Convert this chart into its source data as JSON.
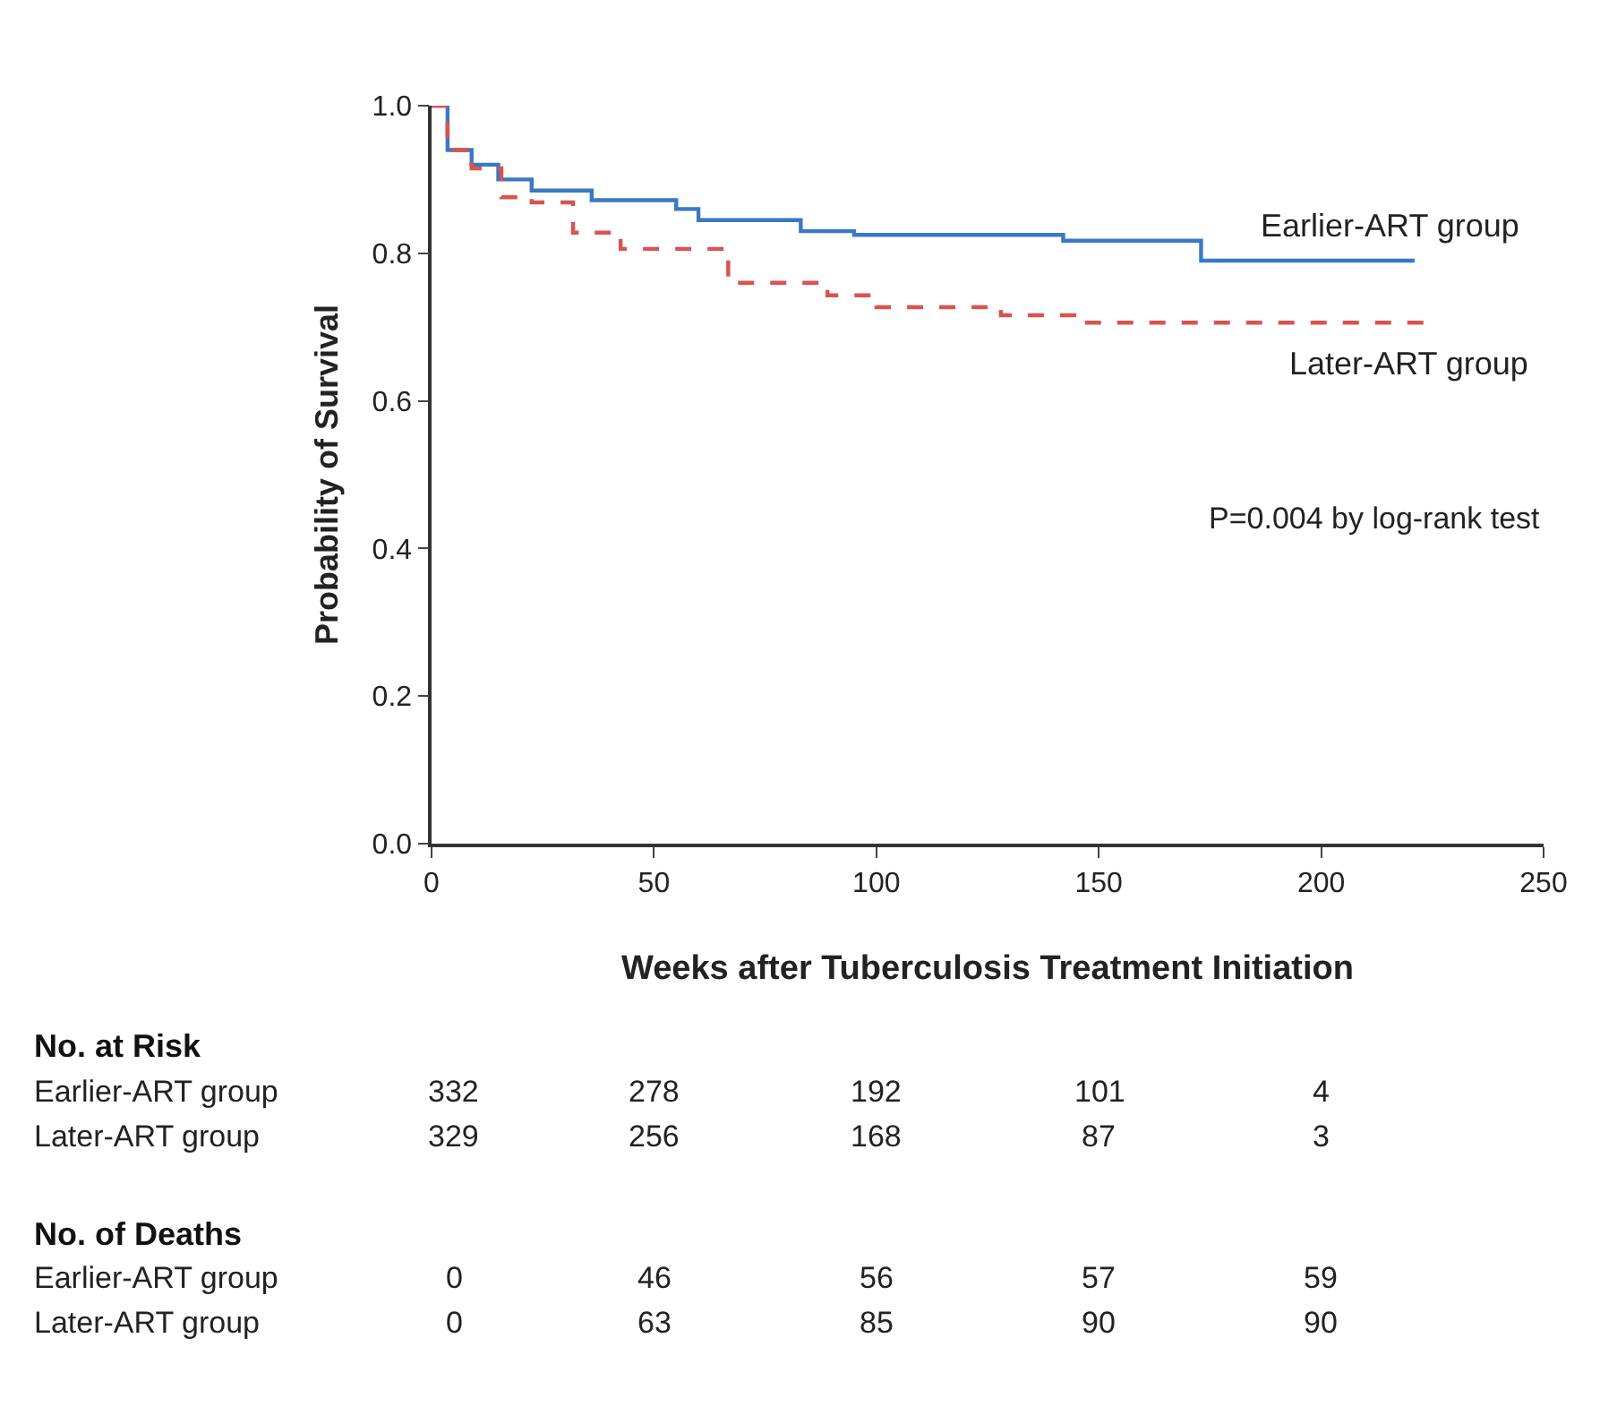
{
  "chart_data": {
    "type": "step",
    "xlabel": "Weeks after Tuberculosis Treatment Initiation",
    "ylabel": "Probability of Survival",
    "xlim": [
      0,
      250
    ],
    "xticks": [
      0,
      50,
      100,
      150,
      200,
      250
    ],
    "ylim": [
      0,
      1
    ],
    "yticks": [
      {
        "value": 0,
        "label": "0.0"
      },
      {
        "value": 0.2,
        "label": "0.2"
      },
      {
        "value": 0.4,
        "label": "0.4"
      },
      {
        "value": 0.6,
        "label": "0.6"
      },
      {
        "value": 0.8,
        "label": "0.8"
      },
      {
        "value": 1,
        "label": "1.0"
      }
    ],
    "grid": false,
    "legend": false,
    "marker": "none",
    "series": [
      {
        "name": "Earlier-ART group",
        "color": "#3a78c4",
        "line_style": "solid",
        "x": [
          0,
          3.6,
          9,
          15,
          22.5,
          36,
          55,
          60,
          83,
          95,
          142,
          173,
          221
        ],
        "values": [
          1,
          0.94,
          0.92,
          0.9,
          0.885,
          0.872,
          0.86,
          0.845,
          0.83,
          0.825,
          0.817,
          0.79,
          0.79
        ]
      },
      {
        "name": "Later-ART group",
        "color": "#d9534f",
        "line_style": "dashed",
        "x": [
          0,
          3.6,
          9,
          15.7,
          22.5,
          31.8,
          42.5,
          50.5,
          66.7,
          89,
          100,
          128,
          144.5,
          223
        ],
        "values": [
          1,
          0.94,
          0.915,
          0.876,
          0.869,
          0.828,
          0.806,
          0.806,
          0.76,
          0.743,
          0.727,
          0.716,
          0.706,
          0.7
        ]
      }
    ],
    "annotations": [
      "P=0.004 by log-rank test",
      "No. at Risk",
      "Earlier-ART group",
      "332",
      "278",
      "192",
      "101",
      "4",
      "Later-ART group",
      "329",
      "256",
      "168",
      "87",
      "3",
      "No. of Deaths",
      "Earlier-ART group",
      "0",
      "46",
      "56",
      "57",
      "59",
      "Later-ART group",
      "0",
      "63",
      "85",
      "90",
      "90"
    ]
  }
}
